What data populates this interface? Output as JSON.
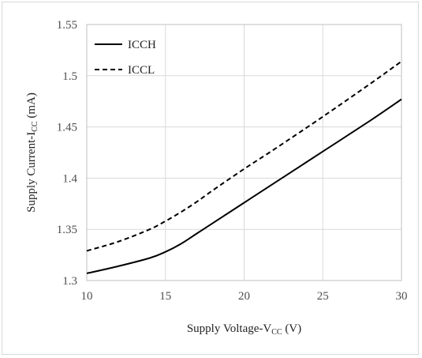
{
  "chart_data": {
    "type": "line",
    "xlabel": {
      "main": "Supply Voltage-V",
      "sub": "CC",
      "unit": " (V)"
    },
    "ylabel": {
      "main": "Supply Current-I",
      "sub": "CC",
      "unit": " (mA)"
    },
    "xlim": [
      10,
      30
    ],
    "ylim": [
      1.3,
      1.55
    ],
    "x_ticks": [
      "10",
      "15",
      "20",
      "25",
      "30"
    ],
    "y_ticks": [
      "1.3",
      "1.35",
      "1.4",
      "1.45",
      "1.5",
      "1.55"
    ],
    "grid": true,
    "legend_position": "top-left",
    "series": [
      {
        "name": "ICCH",
        "style": "solid",
        "color": "#000000",
        "x": [
          10,
          12,
          14,
          15,
          16,
          17,
          18,
          20,
          22,
          25,
          28,
          30
        ],
        "y": [
          1.307,
          1.314,
          1.322,
          1.328,
          1.336,
          1.346,
          1.356,
          1.376,
          1.396,
          1.426,
          1.456,
          1.477
        ]
      },
      {
        "name": "ICCL",
        "style": "dashed",
        "color": "#000000",
        "x": [
          10,
          12,
          14,
          15,
          16,
          17,
          18,
          20,
          22,
          25,
          28,
          30
        ],
        "y": [
          1.329,
          1.338,
          1.35,
          1.358,
          1.367,
          1.377,
          1.388,
          1.409,
          1.429,
          1.46,
          1.492,
          1.514
        ]
      }
    ]
  }
}
